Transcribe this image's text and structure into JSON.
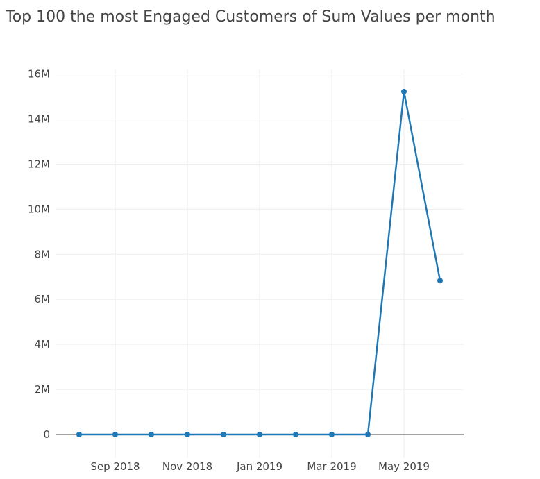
{
  "chart_data": {
    "type": "line",
    "title": "Top 100 the most Engaged Customers of Sum Values per month",
    "xlabel": "",
    "ylabel": "",
    "x": [
      "Aug 2018",
      "Sep 2018",
      "Oct 2018",
      "Nov 2018",
      "Dec 2018",
      "Jan 2019",
      "Feb 2019",
      "Mar 2019",
      "Apr 2019",
      "May 2019",
      "Jun 2019"
    ],
    "series": [
      {
        "name": "Sum Values",
        "color": "#1f77b4",
        "values": [
          0,
          0,
          0,
          0,
          0,
          0,
          0,
          0,
          0,
          15220000,
          6830000
        ]
      }
    ],
    "ylim": [
      -900000,
      16200000
    ],
    "y_ticks": [
      {
        "value": 0,
        "label": "0"
      },
      {
        "value": 2000000,
        "label": "2M"
      },
      {
        "value": 4000000,
        "label": "4M"
      },
      {
        "value": 6000000,
        "label": "6M"
      },
      {
        "value": 8000000,
        "label": "8M"
      },
      {
        "value": 10000000,
        "label": "10M"
      },
      {
        "value": 12000000,
        "label": "12M"
      },
      {
        "value": 14000000,
        "label": "14M"
      },
      {
        "value": 16000000,
        "label": "16M"
      }
    ],
    "x_ticks": [
      {
        "index": 1,
        "label": "Sep 2018"
      },
      {
        "index": 3,
        "label": "Nov 2018"
      },
      {
        "index": 5,
        "label": "Jan 2019"
      },
      {
        "index": 7,
        "label": "Mar 2019"
      },
      {
        "index": 9,
        "label": "May 2019"
      }
    ],
    "grid": true,
    "legend": "none"
  }
}
